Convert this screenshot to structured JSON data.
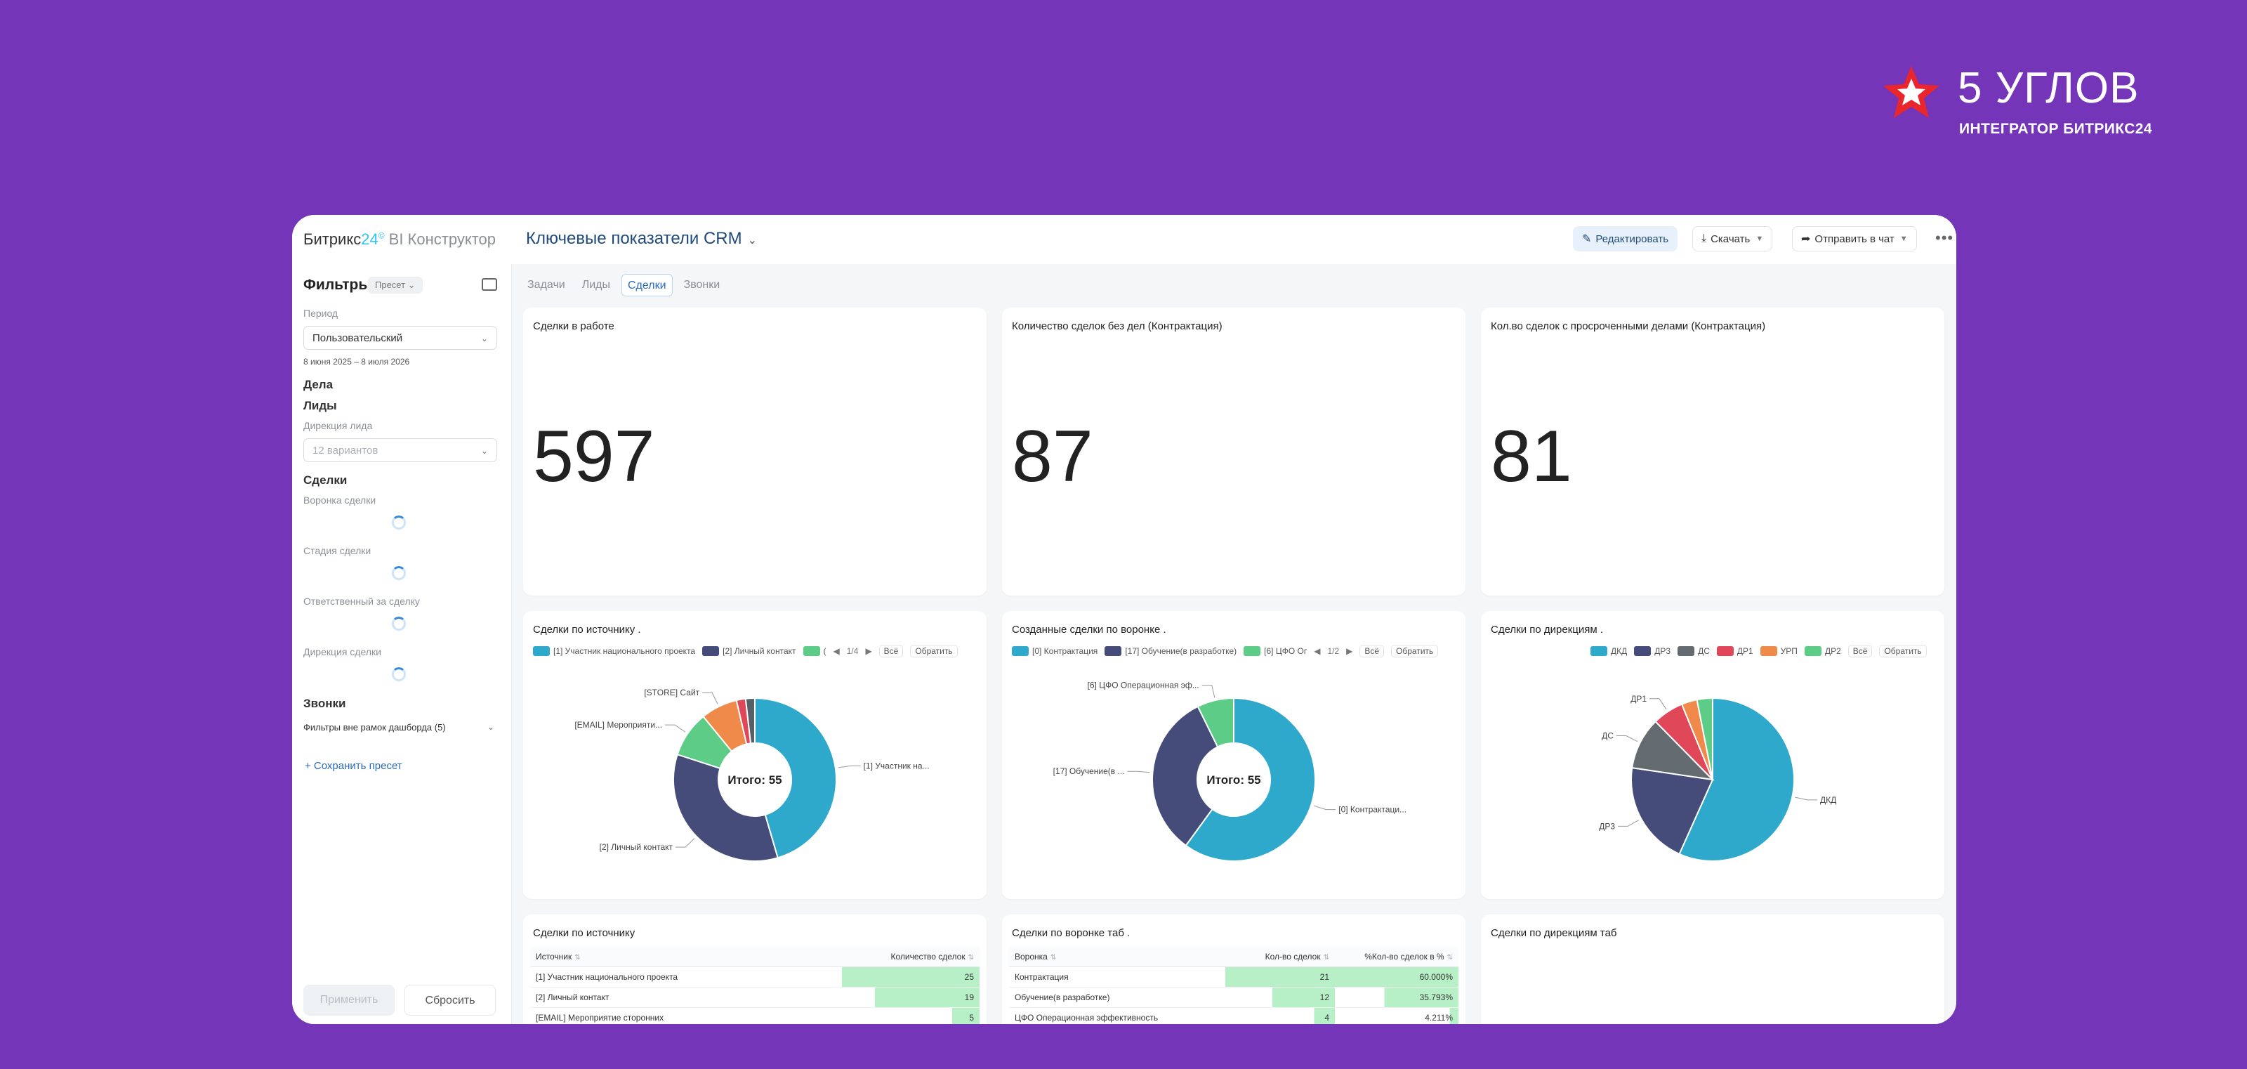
{
  "brand": {
    "name": "5 УГЛОВ",
    "subtitle": "ИНТЕГРАТОР БИТРИКС24"
  },
  "app": {
    "logo_main": "Битрикс",
    "logo_24": "24",
    "logo_mark": "©",
    "logo_suffix": "BI Конструктор",
    "dashboard_title": "Ключевые показатели CRM",
    "edit_label": "Редактировать",
    "download_label": "Скачать",
    "send_label": "Отправить в чат",
    "more_icon": "more-dots-icon"
  },
  "sidebar": {
    "title": "Фильтры",
    "preset": "Пресет",
    "period_label": "Период",
    "period_value": "Пользовательский",
    "period_range": "8 июня 2025 – 8 июля 2026",
    "section_tasks": "Дела",
    "section_leads": "Лиды",
    "lead_direction_label": "Дирекция лида",
    "lead_direction_value": "12 вариантов",
    "section_deals": "Сделки",
    "deal_funnel_label": "Воронка сделки",
    "deal_stage_label": "Стадия сделки",
    "deal_responsible_label": "Ответственный за сделку",
    "deal_direction_label": "Дирекция сделки",
    "section_calls": "Звонки",
    "outside_filters": "Фильтры вне рамок дашборда (5)",
    "save_preset": "+ Сохранить пресет",
    "apply": "Применить",
    "reset": "Сбросить"
  },
  "tabs": [
    {
      "label": "Задачи",
      "active": false
    },
    {
      "label": "Лиды",
      "active": false
    },
    {
      "label": "Сделки",
      "active": true
    },
    {
      "label": "Звонки",
      "active": false
    }
  ],
  "kpis": [
    {
      "title": "Сделки в работе",
      "value": "597"
    },
    {
      "title": "Количество сделок без дел (Контрактация)",
      "value": "87"
    },
    {
      "title": "Кол.во сделок с просроченными делами (Контрактация)",
      "value": "81"
    }
  ],
  "legend_controls": {
    "all": "Всё",
    "invert": "Обратить"
  },
  "chart_data": [
    {
      "type": "pie",
      "title": "Сделки по источнику .",
      "center_label": "Итого: 55",
      "page": "1/4",
      "legend": [
        "[1] Участник национального проекта",
        "[2] Личный контакт",
        "("
      ],
      "slices": [
        {
          "label": "[1] Участник на...",
          "value": 25,
          "color": "#2ea9cc"
        },
        {
          "label": "[2] Личный контакт",
          "value": 19,
          "color": "#454c7a"
        },
        {
          "label": "[EMAIL] Мероприяти...",
          "value": 5,
          "color": "#5ccc86"
        },
        {
          "label": "[STORE] Сайт",
          "value": 4,
          "color": "#f08a4b"
        },
        {
          "label": "",
          "value": 1,
          "color": "#e0485a"
        },
        {
          "label": "",
          "value": 1,
          "color": "#555f66"
        }
      ]
    },
    {
      "type": "pie",
      "title": "Созданные сделки по воронке .",
      "center_label": "Итого: 55",
      "page": "1/2",
      "legend": [
        "[0] Контрактация",
        "[17] Обучение(в разработке)",
        "[6] ЦФО Ог"
      ],
      "slices": [
        {
          "label": "[0] Контрактаци...",
          "value": 33,
          "color": "#2ea9cc"
        },
        {
          "label": "[17] Обучение(в ...",
          "value": 18,
          "color": "#454c7a"
        },
        {
          "label": "[6] ЦФО Операционная эф...",
          "value": 4,
          "color": "#5ccc86"
        }
      ]
    },
    {
      "type": "pie",
      "title": "Сделки по дирекциям .",
      "legend": [
        "ДКД",
        "ДР3",
        "ДС",
        "ДР1",
        "УРП",
        "ДР2"
      ],
      "slices": [
        {
          "label": "ДКД",
          "value": 55,
          "color": "#2ea9cc"
        },
        {
          "label": "ДР3",
          "value": 20,
          "color": "#454c7a"
        },
        {
          "label": "ДС",
          "value": 10,
          "color": "#646b70"
        },
        {
          "label": "ДР1",
          "value": 6,
          "color": "#e0485a"
        },
        {
          "label": "",
          "value": 3,
          "color": "#f08a4b"
        },
        {
          "label": "",
          "value": 3,
          "color": "#5ccc86"
        }
      ]
    },
    {
      "type": "table",
      "title": "Сделки по источнику",
      "columns": [
        "Источник",
        "Количество сделок"
      ],
      "rows": [
        [
          "[1] Участник национального проекта",
          "25"
        ],
        [
          "[2] Личный контакт",
          "19"
        ],
        [
          "[EMAIL] Мероприятие сторонних",
          "5"
        ]
      ],
      "bar_fractions": [
        1.0,
        0.76,
        0.2
      ]
    },
    {
      "type": "table",
      "title": "Сделки по воронке таб .",
      "columns": [
        "Воронка",
        "Кол-во сделок",
        "%Кол-во сделок в %"
      ],
      "rows": [
        [
          "Контрактация",
          "21",
          "60.000%"
        ],
        [
          "Обучение(в разработке)",
          "12",
          "35.793%"
        ],
        [
          "ЦФО Операционная эффективность",
          "4",
          "4.211%"
        ]
      ],
      "bar_fractions": [
        1.0,
        0.57,
        0.19
      ],
      "pct_fractions": [
        1.0,
        0.6,
        0.07
      ]
    },
    {
      "type": "table",
      "title": "Сделки по дирекциям таб",
      "columns": [],
      "rows": []
    }
  ]
}
